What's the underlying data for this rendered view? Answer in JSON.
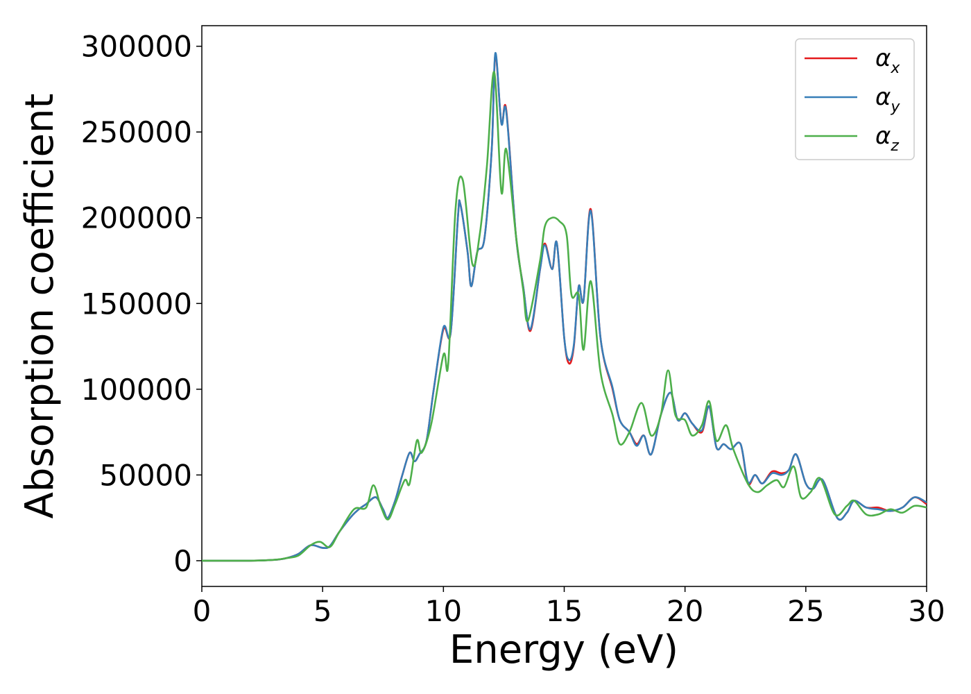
{
  "chart_data": {
    "type": "line",
    "title": "",
    "xlabel": "Energy (eV)",
    "ylabel": "Absorption coefficient",
    "xlim": [
      0,
      30
    ],
    "ylim": [
      -15000,
      312000
    ],
    "xticks": [
      0,
      5,
      10,
      15,
      20,
      25,
      30
    ],
    "yticks": [
      0,
      50000,
      100000,
      150000,
      200000,
      250000,
      300000
    ],
    "grid": false,
    "legend_position": "top-right",
    "series": [
      {
        "name": "α",
        "sub": "x",
        "color": "#e41a1c",
        "points": [
          [
            0,
            0
          ],
          [
            2,
            0
          ],
          [
            3,
            500
          ],
          [
            3.5,
            1500
          ],
          [
            4,
            4000
          ],
          [
            4.5,
            9000
          ],
          [
            5,
            7500
          ],
          [
            5.3,
            8500
          ],
          [
            5.7,
            17000
          ],
          [
            6.2,
            26000
          ],
          [
            6.5,
            30000
          ],
          [
            6.8,
            33000
          ],
          [
            7.2,
            37000
          ],
          [
            7.5,
            30000
          ],
          [
            7.7,
            25000
          ],
          [
            8,
            35000
          ],
          [
            8.3,
            50000
          ],
          [
            8.6,
            63000
          ],
          [
            8.8,
            58000
          ],
          [
            9,
            62000
          ],
          [
            9.3,
            70000
          ],
          [
            9.6,
            100000
          ],
          [
            10,
            135000
          ],
          [
            10.3,
            133000
          ],
          [
            10.6,
            200000
          ],
          [
            10.7,
            208000
          ],
          [
            11,
            180000
          ],
          [
            11.15,
            160000
          ],
          [
            11.4,
            180000
          ],
          [
            11.7,
            188000
          ],
          [
            12,
            240000
          ],
          [
            12.15,
            295000
          ],
          [
            12.4,
            255000
          ],
          [
            12.6,
            263000
          ],
          [
            13,
            190000
          ],
          [
            13.3,
            160000
          ],
          [
            13.6,
            134000
          ],
          [
            14,
            170000
          ],
          [
            14.2,
            185000
          ],
          [
            14.5,
            170000
          ],
          [
            14.7,
            185000
          ],
          [
            15,
            130000
          ],
          [
            15.2,
            115000
          ],
          [
            15.4,
            125000
          ],
          [
            15.6,
            160000
          ],
          [
            15.8,
            152000
          ],
          [
            16.1,
            205000
          ],
          [
            16.5,
            130000
          ],
          [
            17,
            100000
          ],
          [
            17.3,
            82000
          ],
          [
            17.7,
            75000
          ],
          [
            18,
            68000
          ],
          [
            18.3,
            73000
          ],
          [
            18.6,
            62000
          ],
          [
            19,
            85000
          ],
          [
            19.4,
            98000
          ],
          [
            19.7,
            82000
          ],
          [
            20,
            86000
          ],
          [
            20.3,
            80000
          ],
          [
            20.7,
            75000
          ],
          [
            21,
            90000
          ],
          [
            21.3,
            66000
          ],
          [
            21.6,
            68000
          ],
          [
            21.9,
            65000
          ],
          [
            22.3,
            68000
          ],
          [
            22.6,
            45000
          ],
          [
            22.9,
            50000
          ],
          [
            23.2,
            45000
          ],
          [
            23.6,
            52000
          ],
          [
            24,
            51000
          ],
          [
            24.3,
            53000
          ],
          [
            24.6,
            62000
          ],
          [
            25,
            45000
          ],
          [
            25.3,
            42000
          ],
          [
            25.7,
            47000
          ],
          [
            26.3,
            25000
          ],
          [
            26.7,
            28000
          ],
          [
            27,
            35000
          ],
          [
            27.5,
            31000
          ],
          [
            28,
            31000
          ],
          [
            28.5,
            29000
          ],
          [
            29,
            31000
          ],
          [
            29.5,
            37000
          ],
          [
            30,
            33000
          ]
        ]
      },
      {
        "name": "α",
        "sub": "y",
        "color": "#377eb8",
        "points": [
          [
            0,
            0
          ],
          [
            2,
            0
          ],
          [
            3,
            500
          ],
          [
            3.5,
            1500
          ],
          [
            4,
            4000
          ],
          [
            4.5,
            9000
          ],
          [
            5,
            7500
          ],
          [
            5.3,
            8500
          ],
          [
            5.7,
            17000
          ],
          [
            6.2,
            26000
          ],
          [
            6.5,
            30000
          ],
          [
            6.8,
            33000
          ],
          [
            7.2,
            37000
          ],
          [
            7.5,
            30000
          ],
          [
            7.7,
            25000
          ],
          [
            8,
            35000
          ],
          [
            8.3,
            50000
          ],
          [
            8.6,
            63000
          ],
          [
            8.8,
            58000
          ],
          [
            9,
            62000
          ],
          [
            9.3,
            70000
          ],
          [
            9.6,
            100000
          ],
          [
            10,
            136000
          ],
          [
            10.3,
            133000
          ],
          [
            10.6,
            200000
          ],
          [
            10.7,
            208000
          ],
          [
            11,
            180000
          ],
          [
            11.15,
            160000
          ],
          [
            11.4,
            180000
          ],
          [
            11.7,
            188000
          ],
          [
            12,
            240000
          ],
          [
            12.15,
            296000
          ],
          [
            12.4,
            255000
          ],
          [
            12.6,
            262000
          ],
          [
            13,
            190000
          ],
          [
            13.3,
            160000
          ],
          [
            13.6,
            135000
          ],
          [
            14,
            170000
          ],
          [
            14.2,
            184000
          ],
          [
            14.5,
            170000
          ],
          [
            14.7,
            185000
          ],
          [
            15,
            130000
          ],
          [
            15.2,
            117000
          ],
          [
            15.4,
            126000
          ],
          [
            15.6,
            160000
          ],
          [
            15.8,
            152000
          ],
          [
            16.1,
            204000
          ],
          [
            16.5,
            130000
          ],
          [
            17,
            101000
          ],
          [
            17.3,
            82000
          ],
          [
            17.7,
            75000
          ],
          [
            18,
            67000
          ],
          [
            18.3,
            73000
          ],
          [
            18.6,
            62000
          ],
          [
            19,
            85000
          ],
          [
            19.4,
            98000
          ],
          [
            19.7,
            82000
          ],
          [
            20,
            86000
          ],
          [
            20.3,
            80000
          ],
          [
            20.7,
            76000
          ],
          [
            21,
            90000
          ],
          [
            21.3,
            66000
          ],
          [
            21.6,
            68000
          ],
          [
            21.9,
            65000
          ],
          [
            22.3,
            68000
          ],
          [
            22.6,
            46000
          ],
          [
            22.9,
            50000
          ],
          [
            23.2,
            45000
          ],
          [
            23.6,
            51000
          ],
          [
            24,
            50000
          ],
          [
            24.3,
            53000
          ],
          [
            24.6,
            62000
          ],
          [
            25,
            45000
          ],
          [
            25.3,
            42000
          ],
          [
            25.7,
            47000
          ],
          [
            26.3,
            25000
          ],
          [
            26.7,
            28000
          ],
          [
            27,
            35000
          ],
          [
            27.5,
            31000
          ],
          [
            28,
            30000
          ],
          [
            28.5,
            29000
          ],
          [
            29,
            31000
          ],
          [
            29.5,
            37000
          ],
          [
            30,
            34000
          ]
        ]
      },
      {
        "name": "α",
        "sub": "z",
        "color": "#4daf4a",
        "points": [
          [
            0,
            0
          ],
          [
            2,
            0
          ],
          [
            3,
            500
          ],
          [
            3.5,
            1500
          ],
          [
            4,
            3000
          ],
          [
            4.5,
            9000
          ],
          [
            4.9,
            11000
          ],
          [
            5.3,
            8000
          ],
          [
            5.7,
            17000
          ],
          [
            6.3,
            30000
          ],
          [
            6.8,
            31000
          ],
          [
            7.1,
            44000
          ],
          [
            7.4,
            32000
          ],
          [
            7.7,
            24000
          ],
          [
            8,
            33000
          ],
          [
            8.4,
            47000
          ],
          [
            8.6,
            45000
          ],
          [
            8.9,
            70000
          ],
          [
            9.1,
            63000
          ],
          [
            9.5,
            80000
          ],
          [
            10,
            120000
          ],
          [
            10.2,
            115000
          ],
          [
            10.5,
            205000
          ],
          [
            10.8,
            222000
          ],
          [
            11.2,
            173000
          ],
          [
            11.5,
            190000
          ],
          [
            11.8,
            230000
          ],
          [
            12.1,
            285000
          ],
          [
            12.4,
            215000
          ],
          [
            12.6,
            240000
          ],
          [
            13,
            190000
          ],
          [
            13.3,
            158000
          ],
          [
            13.5,
            140000
          ],
          [
            14,
            175000
          ],
          [
            14.2,
            195000
          ],
          [
            14.5,
            200000
          ],
          [
            14.8,
            198000
          ],
          [
            15.1,
            190000
          ],
          [
            15.3,
            155000
          ],
          [
            15.6,
            155000
          ],
          [
            15.8,
            123000
          ],
          [
            16.1,
            163000
          ],
          [
            16.5,
            110000
          ],
          [
            17,
            85000
          ],
          [
            17.3,
            68000
          ],
          [
            17.7,
            75000
          ],
          [
            18.2,
            92000
          ],
          [
            18.6,
            73000
          ],
          [
            19,
            85000
          ],
          [
            19.3,
            111000
          ],
          [
            19.6,
            85000
          ],
          [
            20,
            82000
          ],
          [
            20.3,
            73000
          ],
          [
            20.7,
            79000
          ],
          [
            21,
            93000
          ],
          [
            21.3,
            70000
          ],
          [
            21.7,
            79000
          ],
          [
            22,
            65000
          ],
          [
            22.6,
            45000
          ],
          [
            23,
            40000
          ],
          [
            23.4,
            44000
          ],
          [
            23.8,
            47000
          ],
          [
            24.1,
            43000
          ],
          [
            24.5,
            55000
          ],
          [
            24.8,
            37000
          ],
          [
            25.2,
            40000
          ],
          [
            25.6,
            48000
          ],
          [
            26.2,
            27000
          ],
          [
            26.7,
            32000
          ],
          [
            27,
            35000
          ],
          [
            27.5,
            27000
          ],
          [
            28,
            27000
          ],
          [
            28.5,
            30000
          ],
          [
            29,
            28000
          ],
          [
            29.5,
            32000
          ],
          [
            30,
            31000
          ]
        ]
      }
    ]
  }
}
